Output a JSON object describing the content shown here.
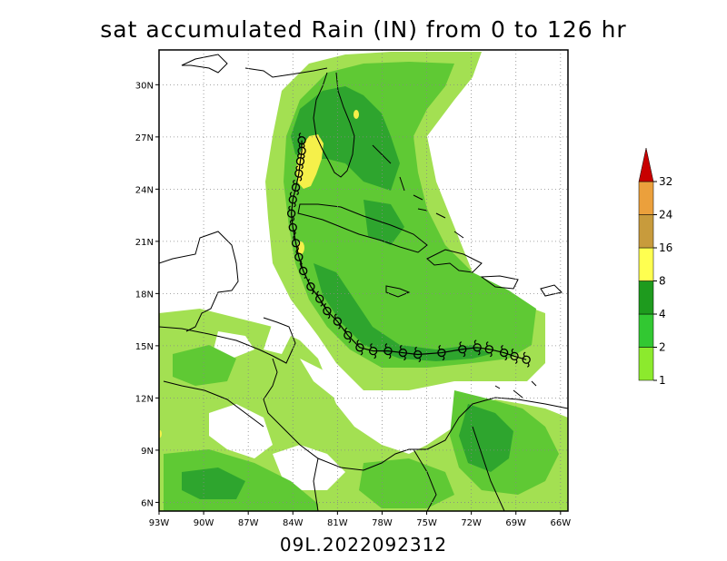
{
  "title": "sat accumulated Rain (IN) from 0 to 126 hr",
  "subtitle": "09L.2022092312",
  "map": {
    "lon_range": [
      -93,
      -65.5
    ],
    "lat_range": [
      5.5,
      32
    ],
    "grid_dotted": true,
    "lon_ticks": [
      {
        "value": -93,
        "label": "93W"
      },
      {
        "value": -90,
        "label": "90W"
      },
      {
        "value": -87,
        "label": "87W"
      },
      {
        "value": -84,
        "label": "84W"
      },
      {
        "value": -81,
        "label": "81W"
      },
      {
        "value": -78,
        "label": "78W"
      },
      {
        "value": -75,
        "label": "75W"
      },
      {
        "value": -72,
        "label": "72W"
      },
      {
        "value": -69,
        "label": "69W"
      },
      {
        "value": -66,
        "label": "66W"
      }
    ],
    "lat_ticks": [
      {
        "value": 30,
        "label": "30N"
      },
      {
        "value": 27,
        "label": "27N"
      },
      {
        "value": 24,
        "label": "24N"
      },
      {
        "value": 21,
        "label": "21N"
      },
      {
        "value": 18,
        "label": "18N"
      },
      {
        "value": 15,
        "label": "15N"
      },
      {
        "value": 12,
        "label": "12N"
      },
      {
        "value": 9,
        "label": "9N"
      },
      {
        "value": 6,
        "label": "6N"
      }
    ],
    "storm_track": {
      "symbol": "tropical-cyclone-icon",
      "points": [
        [
          -68.3,
          14.2
        ],
        [
          -69.1,
          14.4
        ],
        [
          -69.8,
          14.6
        ],
        [
          -70.8,
          14.8
        ],
        [
          -71.6,
          14.9
        ],
        [
          -72.6,
          14.8
        ],
        [
          -74.0,
          14.6
        ],
        [
          -75.6,
          14.5
        ],
        [
          -76.6,
          14.6
        ],
        [
          -77.6,
          14.7
        ],
        [
          -78.6,
          14.7
        ],
        [
          -79.5,
          14.9
        ],
        [
          -80.3,
          15.6
        ],
        [
          -81.0,
          16.4
        ],
        [
          -81.7,
          17.0
        ],
        [
          -82.2,
          17.7
        ],
        [
          -82.8,
          18.4
        ],
        [
          -83.3,
          19.3
        ],
        [
          -83.6,
          20.1
        ],
        [
          -83.8,
          20.9
        ],
        [
          -84.0,
          21.8
        ],
        [
          -84.1,
          22.6
        ],
        [
          -84.0,
          23.4
        ],
        [
          -83.8,
          24.1
        ],
        [
          -83.6,
          24.9
        ],
        [
          -83.5,
          25.6
        ],
        [
          -83.4,
          26.2
        ],
        [
          -83.4,
          26.8
        ]
      ]
    }
  },
  "colorbar": {
    "levels": [
      "1",
      "2",
      "4",
      "8",
      "16",
      "24",
      "32"
    ],
    "colors": [
      "#8cea2d",
      "#32c832",
      "#1e9b1e",
      "#ffff50",
      "#c89b3c",
      "#eba03c",
      "#c80000"
    ]
  },
  "rain_colors": {
    "light": "#a3e052",
    "medium": "#5fc934",
    "dark": "#2ea52e",
    "yellow": "#f5f04a",
    "land_line": "#000000"
  }
}
